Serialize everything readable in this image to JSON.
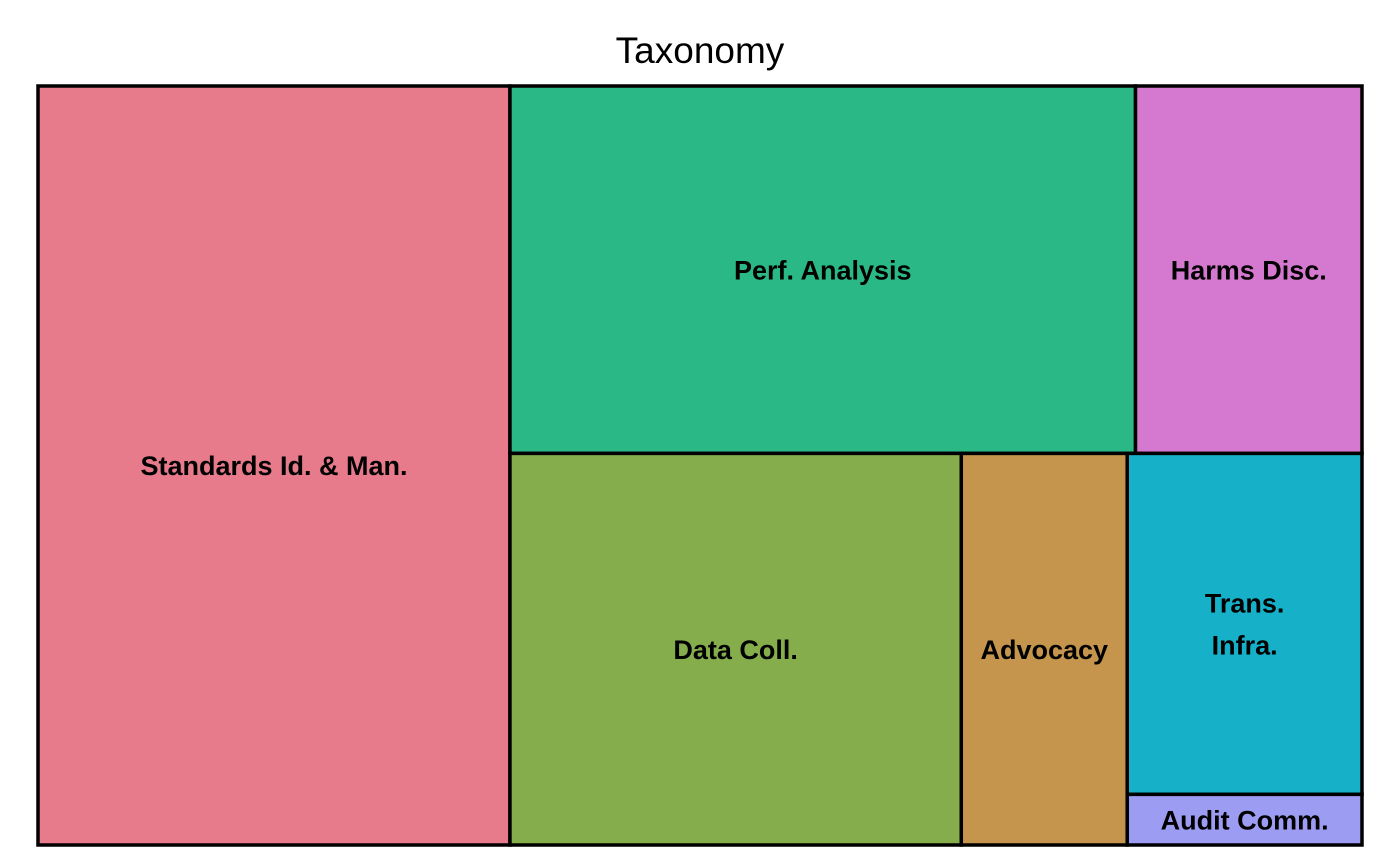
{
  "chart_data": {
    "type": "treemap",
    "title": "Taxonomy",
    "categories": [
      "Standards Id. & Man.",
      "Perf. Analysis",
      "Harms Disc.",
      "Data Coll.",
      "Advocacy",
      "Trans. Infra.",
      "Audit Comm."
    ],
    "values": [
      452,
      290,
      105,
      223,
      82,
      101,
      15
    ],
    "colors": [
      "#e77a8b",
      "#29b886",
      "#d578d0",
      "#85ad4c",
      "#c5944d",
      "#16b0c8",
      "#9b9cf2"
    ]
  }
}
